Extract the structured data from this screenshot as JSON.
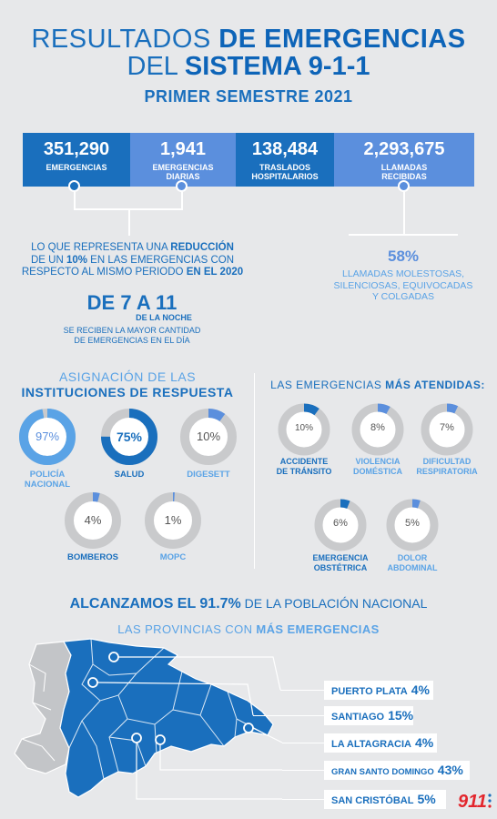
{
  "header": {
    "line1_light": "RESULTADOS ",
    "line1_bold": "DE EMERGENCIAS",
    "line2_light": "DEL ",
    "line2_bold": "SISTEMA 9-1-1",
    "subtitle": "PRIMER SEMESTRE 2021"
  },
  "stats": [
    {
      "value": "351,290",
      "label_1": "EMERGENCIAS",
      "label_2": ""
    },
    {
      "value": "1,941",
      "label_1": "EMERGENCIAS",
      "label_2": "DIARIAS"
    },
    {
      "value": "138,484",
      "label_1": "TRASLADOS",
      "label_2": "HOSPITALARIOS"
    },
    {
      "value": "2,293,675",
      "label_1": "LLAMADAS",
      "label_2": "RECIBIDAS"
    }
  ],
  "reduction": {
    "l1_a": "LO QUE REPRESENTA UNA ",
    "l1_b": "REDUCCIÓN",
    "l2_a": "DE UN ",
    "l2_b": "10%",
    "l2_c": " EN LAS EMERGENCIAS CON",
    "l3_a": "RESPECTO AL MISMO PERIODO ",
    "l3_b": "EN EL 2020"
  },
  "calls": {
    "pct": "58%",
    "l1": "LLAMADAS MOLESTOSAS,",
    "l2": "SILENCIOSAS, EQUIVOCADAS",
    "l3": "Y COLGADAS"
  },
  "hours": {
    "big": "DE 7 A 11",
    "small": "DE LA NOCHE",
    "l1": "SE RECIBEN LA MAYOR CANTIDAD",
    "l2": "DE EMERGENCIAS EN EL DÍA"
  },
  "institutions": {
    "title_light": "ASIGNACIÓN DE LAS",
    "title_bold": "INSTITUCIONES DE RESPUESTA",
    "items": [
      {
        "pct": "97%",
        "value": 97,
        "label_1": "POLICÍA",
        "label_2": "NACIONAL"
      },
      {
        "pct": "75%",
        "value": 75,
        "label_1": "SALUD",
        "label_2": ""
      },
      {
        "pct": "10%",
        "value": 10,
        "label_1": "DIGESETT",
        "label_2": ""
      },
      {
        "pct": "4%",
        "value": 4,
        "label_1": "BOMBEROS",
        "label_2": ""
      },
      {
        "pct": "1%",
        "value": 1,
        "label_1": "MOPC",
        "label_2": ""
      }
    ]
  },
  "attended": {
    "title_light": "LAS EMERGENCIAS ",
    "title_bold": "MÁS ATENDIDAS:",
    "items": [
      {
        "pct": "10%",
        "value": 10,
        "label_1": "ACCIDENTE",
        "label_2": "DE TRÁNSITO"
      },
      {
        "pct": "8%",
        "value": 8,
        "label_1": "VIOLENCIA",
        "label_2": "DOMÉSTICA"
      },
      {
        "pct": "7%",
        "value": 7,
        "label_1": "DIFICULTAD",
        "label_2": "RESPIRATORIA"
      },
      {
        "pct": "6%",
        "value": 6,
        "label_1": "EMERGENCIA",
        "label_2": "OBSTÉTRICA"
      },
      {
        "pct": "5%",
        "value": 5,
        "label_1": "DOLOR",
        "label_2": "ABDOMINAL"
      }
    ]
  },
  "coverage": {
    "bold": "ALCANZAMOS EL 91.7%",
    "light": " DE LA POBLACIÓN NACIONAL"
  },
  "provinces": {
    "title_light": "LAS PROVINCIAS CON ",
    "title_bold": "MÁS EMERGENCIAS",
    "items": [
      {
        "name": "PUERTO PLATA",
        "pct": "4%"
      },
      {
        "name": "SANTIAGO",
        "pct": "15%"
      },
      {
        "name": "LA ALTAGRACIA",
        "pct": "4%"
      },
      {
        "name": "GRAN SANTO DOMINGO",
        "pct": "43%"
      },
      {
        "name": "SAN CRISTÓBAL",
        "pct": "5%"
      }
    ]
  },
  "logo": {
    "text": "911"
  },
  "colors": {
    "dark_blue": "#1a6fbd",
    "light_blue": "#5b8fdd",
    "accent": "#5aa3e6",
    "ring_grey": "#c9cacc",
    "background": "#e7e8ea",
    "logo_red": "#e3262d"
  }
}
